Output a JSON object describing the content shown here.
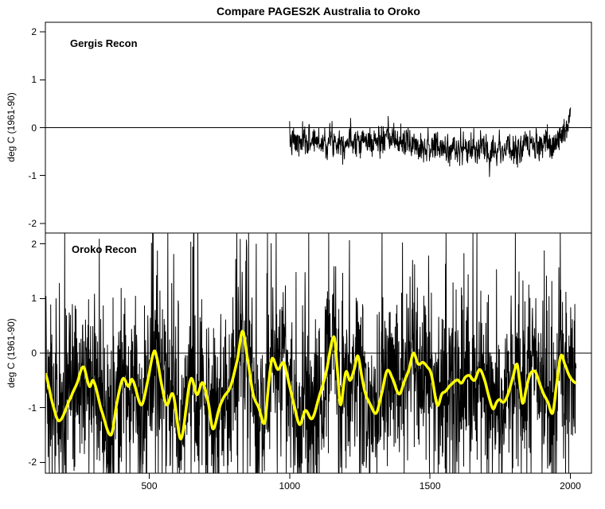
{
  "title": "Compare PAGES2K Australia to Oroko",
  "axes": {
    "ylabel": "deg C (1961-90)",
    "x_ticks": [
      500,
      1000,
      1500,
      2000
    ],
    "y_ticks": [
      2,
      1,
      0,
      -1,
      -2
    ],
    "ylim": [
      -2.2,
      2.2
    ],
    "zero_line": 0
  },
  "panels": [
    {
      "id": "gergis",
      "label": "Gergis Recon"
    },
    {
      "id": "oroko",
      "label": "Oroko Recon"
    }
  ],
  "colors": {
    "background": "#ffffff",
    "axis": "#000000",
    "annual_series": "#000000",
    "smoothed_series": "#ffff00"
  },
  "chart_data": [
    {
      "type": "line",
      "panel": "Gergis Recon",
      "ylabel": "deg C (1961-90)",
      "ylim": [
        -2.2,
        2.2
      ],
      "x_start": 1000,
      "x_end": 2001,
      "x_step": 1,
      "zero_line": 0,
      "series": [
        {
          "name": "annual",
          "color": "#000000",
          "baseline_points": [
            [
              1000,
              -0.28
            ],
            [
              1040,
              -0.33
            ],
            [
              1080,
              -0.25
            ],
            [
              1120,
              -0.3
            ],
            [
              1160,
              -0.25
            ],
            [
              1200,
              -0.3
            ],
            [
              1240,
              -0.22
            ],
            [
              1280,
              -0.3
            ],
            [
              1320,
              -0.28
            ],
            [
              1360,
              -0.25
            ],
            [
              1400,
              -0.3
            ],
            [
              1440,
              -0.33
            ],
            [
              1480,
              -0.38
            ],
            [
              1520,
              -0.42
            ],
            [
              1560,
              -0.45
            ],
            [
              1600,
              -0.44
            ],
            [
              1640,
              -0.46
            ],
            [
              1680,
              -0.45
            ],
            [
              1720,
              -0.43
            ],
            [
              1760,
              -0.44
            ],
            [
              1800,
              -0.46
            ],
            [
              1840,
              -0.42
            ],
            [
              1880,
              -0.4
            ],
            [
              1910,
              -0.38
            ],
            [
              1940,
              -0.33
            ],
            [
              1960,
              -0.25
            ],
            [
              1975,
              -0.12
            ],
            [
              1988,
              0.0
            ],
            [
              1996,
              0.2
            ],
            [
              2001,
              0.42
            ]
          ],
          "noise": {
            "sd": 0.15,
            "ar": 0.25,
            "seed": 7
          }
        }
      ]
    },
    {
      "type": "line",
      "panel": "Oroko Recon",
      "ylabel": "deg C (1961-90)",
      "ylim": [
        -2.2,
        2.2
      ],
      "x_start": 130,
      "x_end": 2020,
      "x_step": 1,
      "zero_line": 0,
      "series": [
        {
          "name": "annual",
          "color": "#000000",
          "noise": {
            "sd_common": 0.78,
            "sd_spike": 1.9,
            "spike_prob": 0.15,
            "ar": -0.15,
            "seed": 12345
          },
          "clip": [
            -2.19,
            2.19
          ]
        },
        {
          "name": "smoothed",
          "color": "#ffff00",
          "points": [
            [
              130,
              -0.37
            ],
            [
              157,
              -0.95
            ],
            [
              180,
              -1.24
            ],
            [
              221,
              -0.81
            ],
            [
              243,
              -0.55
            ],
            [
              265,
              -0.25
            ],
            [
              287,
              -0.61
            ],
            [
              301,
              -0.51
            ],
            [
              330,
              -1.05
            ],
            [
              364,
              -1.5
            ],
            [
              385,
              -0.9
            ],
            [
              406,
              -0.47
            ],
            [
              426,
              -0.61
            ],
            [
              440,
              -0.49
            ],
            [
              472,
              -0.95
            ],
            [
              495,
              -0.5
            ],
            [
              515,
              0.0
            ],
            [
              525,
              -0.05
            ],
            [
              545,
              -0.6
            ],
            [
              562,
              -0.95
            ],
            [
              585,
              -0.76
            ],
            [
              613,
              -1.57
            ],
            [
              647,
              -0.49
            ],
            [
              670,
              -0.76
            ],
            [
              690,
              -0.54
            ],
            [
              710,
              -0.9
            ],
            [
              727,
              -1.39
            ],
            [
              750,
              -1.0
            ],
            [
              766,
              -0.8
            ],
            [
              790,
              -0.6
            ],
            [
              815,
              -0.1
            ],
            [
              832,
              0.4
            ],
            [
              850,
              -0.1
            ],
            [
              870,
              -0.75
            ],
            [
              890,
              -1.0
            ],
            [
              911,
              -1.28
            ],
            [
              925,
              -0.6
            ],
            [
              937,
              -0.1
            ],
            [
              958,
              -0.3
            ],
            [
              979,
              -0.18
            ],
            [
              1000,
              -0.6
            ],
            [
              1018,
              -1.0
            ],
            [
              1036,
              -1.31
            ],
            [
              1056,
              -1.05
            ],
            [
              1080,
              -1.2
            ],
            [
              1105,
              -0.8
            ],
            [
              1130,
              -0.35
            ],
            [
              1158,
              0.3
            ],
            [
              1170,
              -0.3
            ],
            [
              1181,
              -0.95
            ],
            [
              1200,
              -0.35
            ],
            [
              1215,
              -0.5
            ],
            [
              1230,
              -0.3
            ],
            [
              1243,
              -0.05
            ],
            [
              1258,
              -0.45
            ],
            [
              1271,
              -0.76
            ],
            [
              1285,
              -0.92
            ],
            [
              1308,
              -1.1
            ],
            [
              1330,
              -0.7
            ],
            [
              1347,
              -0.32
            ],
            [
              1365,
              -0.45
            ],
            [
              1390,
              -0.75
            ],
            [
              1410,
              -0.5
            ],
            [
              1425,
              -0.3
            ],
            [
              1441,
              0.0
            ],
            [
              1458,
              -0.2
            ],
            [
              1475,
              -0.17
            ],
            [
              1490,
              -0.25
            ],
            [
              1505,
              -0.4
            ],
            [
              1526,
              -0.95
            ],
            [
              1542,
              -0.75
            ],
            [
              1555,
              -0.7
            ],
            [
              1570,
              -0.6
            ],
            [
              1597,
              -0.49
            ],
            [
              1612,
              -0.55
            ],
            [
              1626,
              -0.44
            ],
            [
              1640,
              -0.41
            ],
            [
              1658,
              -0.5
            ],
            [
              1677,
              -0.3
            ],
            [
              1695,
              -0.5
            ],
            [
              1710,
              -0.8
            ],
            [
              1725,
              -1.02
            ],
            [
              1737,
              -0.9
            ],
            [
              1748,
              -0.85
            ],
            [
              1762,
              -0.9
            ],
            [
              1778,
              -0.75
            ],
            [
              1795,
              -0.45
            ],
            [
              1810,
              -0.2
            ],
            [
              1820,
              -0.55
            ],
            [
              1830,
              -0.92
            ],
            [
              1845,
              -0.6
            ],
            [
              1858,
              -0.37
            ],
            [
              1875,
              -0.34
            ],
            [
              1890,
              -0.55
            ],
            [
              1905,
              -0.75
            ],
            [
              1920,
              -0.9
            ],
            [
              1937,
              -1.1
            ],
            [
              1950,
              -0.6
            ],
            [
              1966,
              -0.05
            ],
            [
              1980,
              -0.2
            ],
            [
              1995,
              -0.4
            ],
            [
              2008,
              -0.5
            ],
            [
              2020,
              -0.55
            ]
          ]
        }
      ]
    }
  ]
}
